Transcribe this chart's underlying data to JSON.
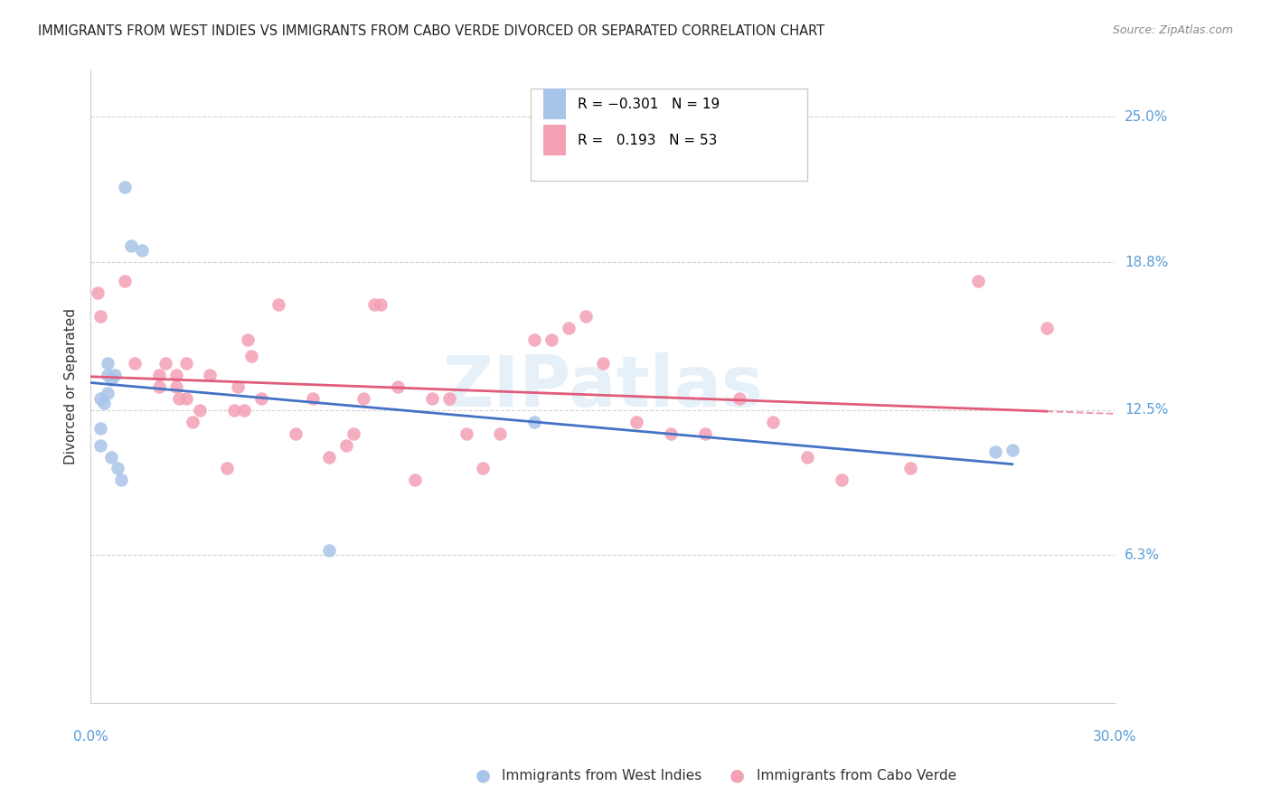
{
  "title": "IMMIGRANTS FROM WEST INDIES VS IMMIGRANTS FROM CABO VERDE DIVORCED OR SEPARATED CORRELATION CHART",
  "source": "Source: ZipAtlas.com",
  "ylabel": "Divorced or Separated",
  "ytick_labels": [
    "25.0%",
    "18.8%",
    "12.5%",
    "6.3%"
  ],
  "ytick_values": [
    0.25,
    0.188,
    0.125,
    0.063
  ],
  "xlim": [
    0.0,
    0.3
  ],
  "ylim": [
    0.0,
    0.27
  ],
  "watermark": "ZIPatlas",
  "legend_r1": "R = −0.301   N = 19",
  "legend_r2": "R =   0.193   N = 53",
  "west_indies_x": [
    0.01,
    0.012,
    0.015,
    0.005,
    0.005,
    0.007,
    0.006,
    0.005,
    0.003,
    0.004,
    0.003,
    0.003,
    0.006,
    0.008,
    0.009,
    0.13,
    0.27,
    0.265,
    0.07
  ],
  "west_indies_y": [
    0.22,
    0.195,
    0.193,
    0.145,
    0.14,
    0.14,
    0.138,
    0.132,
    0.13,
    0.128,
    0.117,
    0.11,
    0.105,
    0.1,
    0.095,
    0.12,
    0.108,
    0.107,
    0.065
  ],
  "cabo_verde_x": [
    0.002,
    0.003,
    0.01,
    0.013,
    0.02,
    0.02,
    0.022,
    0.025,
    0.025,
    0.026,
    0.028,
    0.028,
    0.03,
    0.032,
    0.035,
    0.04,
    0.042,
    0.043,
    0.045,
    0.046,
    0.047,
    0.05,
    0.055,
    0.06,
    0.065,
    0.07,
    0.075,
    0.077,
    0.08,
    0.083,
    0.085,
    0.09,
    0.095,
    0.1,
    0.105,
    0.11,
    0.115,
    0.12,
    0.13,
    0.135,
    0.14,
    0.145,
    0.15,
    0.16,
    0.17,
    0.18,
    0.19,
    0.2,
    0.21,
    0.22,
    0.24,
    0.26,
    0.28
  ],
  "cabo_verde_y": [
    0.175,
    0.165,
    0.18,
    0.145,
    0.14,
    0.135,
    0.145,
    0.14,
    0.135,
    0.13,
    0.13,
    0.145,
    0.12,
    0.125,
    0.14,
    0.1,
    0.125,
    0.135,
    0.125,
    0.155,
    0.148,
    0.13,
    0.17,
    0.115,
    0.13,
    0.105,
    0.11,
    0.115,
    0.13,
    0.17,
    0.17,
    0.135,
    0.095,
    0.13,
    0.13,
    0.115,
    0.1,
    0.115,
    0.155,
    0.155,
    0.16,
    0.165,
    0.145,
    0.12,
    0.115,
    0.115,
    0.13,
    0.12,
    0.105,
    0.095,
    0.1,
    0.18,
    0.16
  ],
  "west_indies_line_color": "#4472c4",
  "cabo_verde_line_color": "#e05c7a",
  "west_indies_scatter_color": "#a8c4e8",
  "cabo_verde_scatter_color": "#f4a0b5",
  "background_color": "#ffffff",
  "grid_color": "#d3d3d3",
  "watermark_color": "#d0e4f5"
}
